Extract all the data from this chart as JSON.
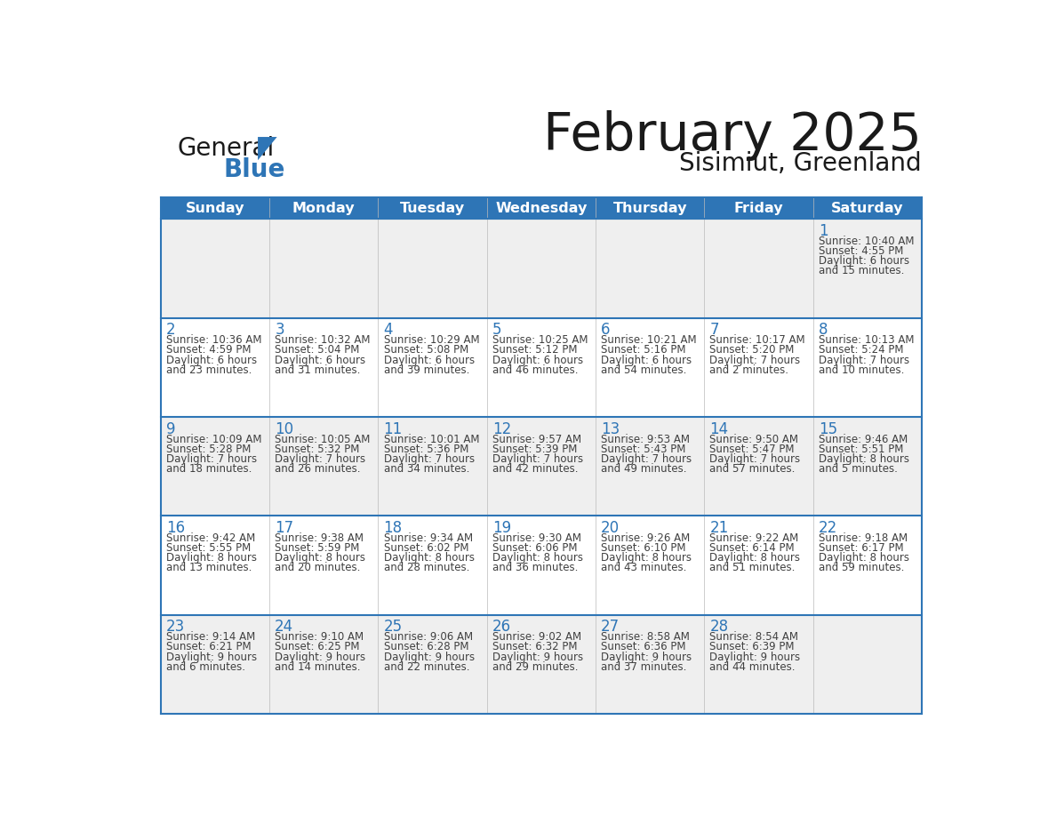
{
  "title": "February 2025",
  "subtitle": "Sisimiut, Greenland",
  "days_of_week": [
    "Sunday",
    "Monday",
    "Tuesday",
    "Wednesday",
    "Thursday",
    "Friday",
    "Saturday"
  ],
  "header_bg": "#2E75B6",
  "header_text": "#FFFFFF",
  "cell_bg_white": "#FFFFFF",
  "cell_bg_gray": "#EFEFEF",
  "day_num_color": "#2E75B6",
  "text_color": "#404040",
  "line_color": "#2E75B6",
  "title_color": "#1a1a1a",
  "logo_color_general": "#1a1a1a",
  "logo_color_blue": "#2E75B6",
  "logo_triangle_color": "#2E75B6",
  "calendar_data": [
    [
      null,
      null,
      null,
      null,
      null,
      null,
      {
        "day": 1,
        "sunrise": "10:40 AM",
        "sunset": "4:55 PM",
        "daylight": "6 hours",
        "daylight2": "and 15 minutes."
      }
    ],
    [
      {
        "day": 2,
        "sunrise": "10:36 AM",
        "sunset": "4:59 PM",
        "daylight": "6 hours",
        "daylight2": "and 23 minutes."
      },
      {
        "day": 3,
        "sunrise": "10:32 AM",
        "sunset": "5:04 PM",
        "daylight": "6 hours",
        "daylight2": "and 31 minutes."
      },
      {
        "day": 4,
        "sunrise": "10:29 AM",
        "sunset": "5:08 PM",
        "daylight": "6 hours",
        "daylight2": "and 39 minutes."
      },
      {
        "day": 5,
        "sunrise": "10:25 AM",
        "sunset": "5:12 PM",
        "daylight": "6 hours",
        "daylight2": "and 46 minutes."
      },
      {
        "day": 6,
        "sunrise": "10:21 AM",
        "sunset": "5:16 PM",
        "daylight": "6 hours",
        "daylight2": "and 54 minutes."
      },
      {
        "day": 7,
        "sunrise": "10:17 AM",
        "sunset": "5:20 PM",
        "daylight": "7 hours",
        "daylight2": "and 2 minutes."
      },
      {
        "day": 8,
        "sunrise": "10:13 AM",
        "sunset": "5:24 PM",
        "daylight": "7 hours",
        "daylight2": "and 10 minutes."
      }
    ],
    [
      {
        "day": 9,
        "sunrise": "10:09 AM",
        "sunset": "5:28 PM",
        "daylight": "7 hours",
        "daylight2": "and 18 minutes."
      },
      {
        "day": 10,
        "sunrise": "10:05 AM",
        "sunset": "5:32 PM",
        "daylight": "7 hours",
        "daylight2": "and 26 minutes."
      },
      {
        "day": 11,
        "sunrise": "10:01 AM",
        "sunset": "5:36 PM",
        "daylight": "7 hours",
        "daylight2": "and 34 minutes."
      },
      {
        "day": 12,
        "sunrise": "9:57 AM",
        "sunset": "5:39 PM",
        "daylight": "7 hours",
        "daylight2": "and 42 minutes."
      },
      {
        "day": 13,
        "sunrise": "9:53 AM",
        "sunset": "5:43 PM",
        "daylight": "7 hours",
        "daylight2": "and 49 minutes."
      },
      {
        "day": 14,
        "sunrise": "9:50 AM",
        "sunset": "5:47 PM",
        "daylight": "7 hours",
        "daylight2": "and 57 minutes."
      },
      {
        "day": 15,
        "sunrise": "9:46 AM",
        "sunset": "5:51 PM",
        "daylight": "8 hours",
        "daylight2": "and 5 minutes."
      }
    ],
    [
      {
        "day": 16,
        "sunrise": "9:42 AM",
        "sunset": "5:55 PM",
        "daylight": "8 hours",
        "daylight2": "and 13 minutes."
      },
      {
        "day": 17,
        "sunrise": "9:38 AM",
        "sunset": "5:59 PM",
        "daylight": "8 hours",
        "daylight2": "and 20 minutes."
      },
      {
        "day": 18,
        "sunrise": "9:34 AM",
        "sunset": "6:02 PM",
        "daylight": "8 hours",
        "daylight2": "and 28 minutes."
      },
      {
        "day": 19,
        "sunrise": "9:30 AM",
        "sunset": "6:06 PM",
        "daylight": "8 hours",
        "daylight2": "and 36 minutes."
      },
      {
        "day": 20,
        "sunrise": "9:26 AM",
        "sunset": "6:10 PM",
        "daylight": "8 hours",
        "daylight2": "and 43 minutes."
      },
      {
        "day": 21,
        "sunrise": "9:22 AM",
        "sunset": "6:14 PM",
        "daylight": "8 hours",
        "daylight2": "and 51 minutes."
      },
      {
        "day": 22,
        "sunrise": "9:18 AM",
        "sunset": "6:17 PM",
        "daylight": "8 hours",
        "daylight2": "and 59 minutes."
      }
    ],
    [
      {
        "day": 23,
        "sunrise": "9:14 AM",
        "sunset": "6:21 PM",
        "daylight": "9 hours",
        "daylight2": "and 6 minutes."
      },
      {
        "day": 24,
        "sunrise": "9:10 AM",
        "sunset": "6:25 PM",
        "daylight": "9 hours",
        "daylight2": "and 14 minutes."
      },
      {
        "day": 25,
        "sunrise": "9:06 AM",
        "sunset": "6:28 PM",
        "daylight": "9 hours",
        "daylight2": "and 22 minutes."
      },
      {
        "day": 26,
        "sunrise": "9:02 AM",
        "sunset": "6:32 PM",
        "daylight": "9 hours",
        "daylight2": "and 29 minutes."
      },
      {
        "day": 27,
        "sunrise": "8:58 AM",
        "sunset": "6:36 PM",
        "daylight": "9 hours",
        "daylight2": "and 37 minutes."
      },
      {
        "day": 28,
        "sunrise": "8:54 AM",
        "sunset": "6:39 PM",
        "daylight": "9 hours",
        "daylight2": "and 44 minutes."
      },
      null
    ]
  ]
}
